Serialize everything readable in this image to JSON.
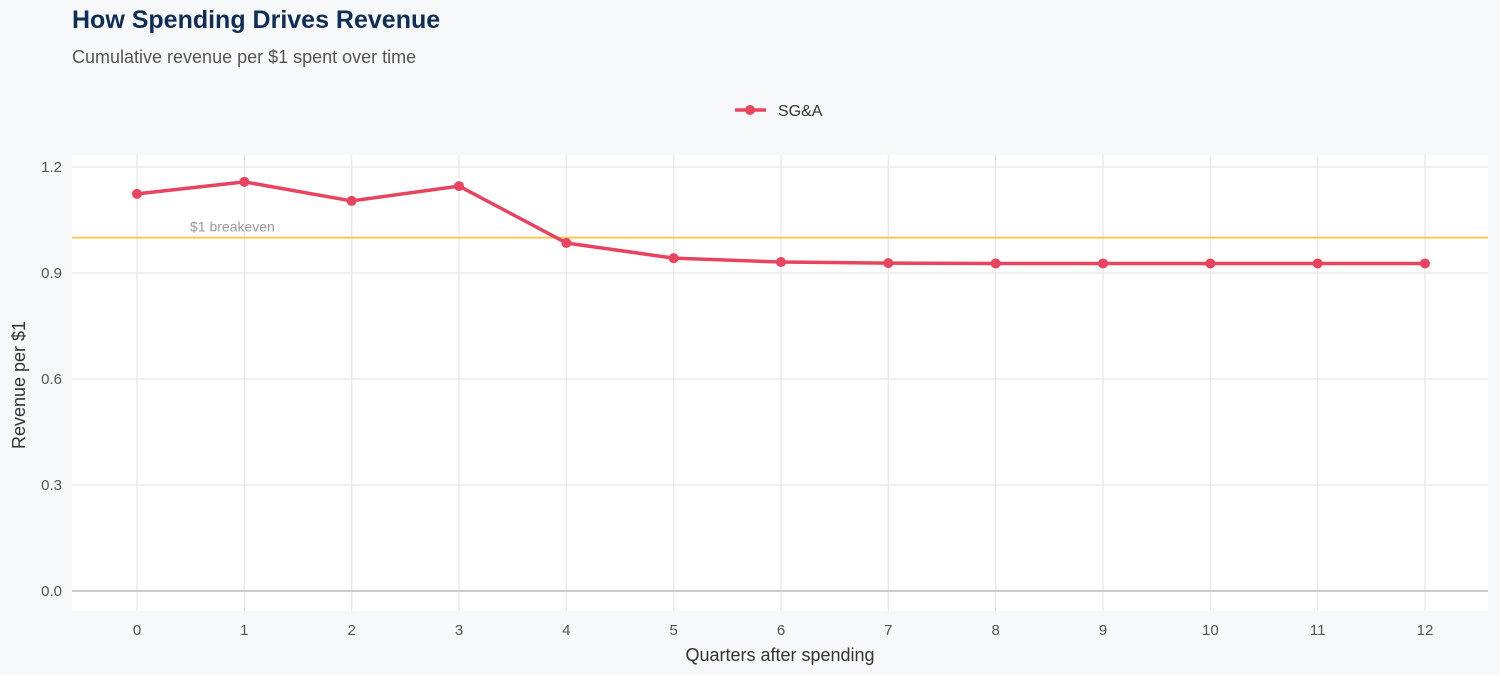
{
  "chart_data": {
    "type": "line",
    "title": "How Spending Drives Revenue",
    "subtitle": "Cumulative revenue per $1 spent over time",
    "xlabel": "Quarters after spending",
    "ylabel": "Revenue per $1",
    "x": [
      0,
      1,
      2,
      3,
      4,
      5,
      6,
      7,
      8,
      9,
      10,
      11,
      12
    ],
    "xticks": [
      "0",
      "1",
      "2",
      "3",
      "4",
      "5",
      "6",
      "7",
      "8",
      "9",
      "10",
      "11",
      "12"
    ],
    "yticks": [
      "0.0",
      "0.3",
      "0.6",
      "0.9",
      "1.2"
    ],
    "ylim": [
      0,
      1.2
    ],
    "xlim": [
      -0.6,
      12.6
    ],
    "grid": true,
    "legend_position": "top",
    "series": [
      {
        "name": "SG&A",
        "color": "#e8435f",
        "values": [
          1.124,
          1.158,
          1.104,
          1.146,
          0.985,
          0.942,
          0.931,
          0.928,
          0.927,
          0.927,
          0.927,
          0.927,
          0.927
        ]
      }
    ],
    "reference_line": {
      "value": 1.0,
      "label": "$1 breakeven",
      "color": "#f7c75a"
    }
  }
}
